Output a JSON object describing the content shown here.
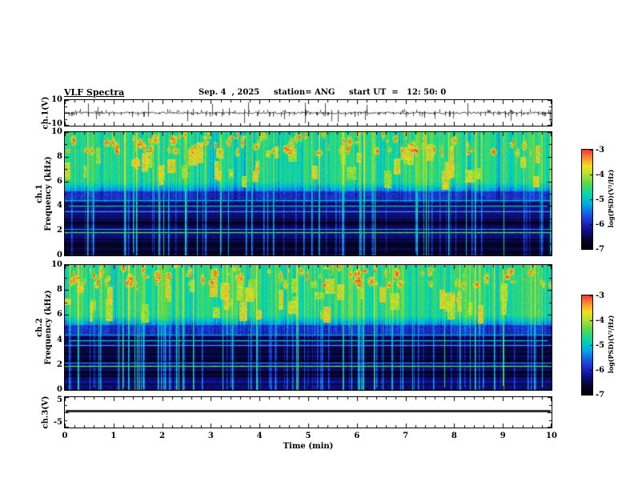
{
  "header": {
    "title": "VLF Spectra",
    "date": "Sep. 4  , 2025",
    "station": "station= ANG",
    "start_ut": "start UT  =   12: 50: 0"
  },
  "panels": {
    "ch1_wave": {
      "ylabel": "ch.1(V)",
      "ytop": "10",
      "ybottom": "-10"
    },
    "ch1_spec": {
      "ylabel_ch": "ch.1",
      "ylabel_freq": "Frequency (kHz)",
      "yticks": [
        "10",
        "8",
        "6",
        "4",
        "2",
        "0"
      ]
    },
    "ch2_spec": {
      "ylabel_ch": "ch.2",
      "ylabel_freq": "Frequency (kHz)",
      "yticks": [
        "10",
        "8",
        "6",
        "4",
        "2",
        "0"
      ]
    },
    "ch3_wave": {
      "ylabel": "ch.3(V)",
      "ytop": "5",
      "ybottom": "-5"
    }
  },
  "xaxis": {
    "label": "Time (min)",
    "ticks": [
      "0",
      "1",
      "2",
      "3",
      "4",
      "5",
      "6",
      "7",
      "8",
      "9",
      "10"
    ]
  },
  "colorbars": [
    {
      "label": "log(PSD)(V²/Hz)",
      "ticks": [
        "-3",
        "-4",
        "-5",
        "-6",
        "-7"
      ]
    },
    {
      "label": "log(PSD)(V²/Hz)",
      "ticks": [
        "-3",
        "-4",
        "-5",
        "-6",
        "-7"
      ]
    }
  ],
  "colormap": {
    "stops": [
      [
        0.0,
        "#000000"
      ],
      [
        0.1,
        "#050530"
      ],
      [
        0.2,
        "#101090"
      ],
      [
        0.32,
        "#2040e0"
      ],
      [
        0.45,
        "#00a8e8"
      ],
      [
        0.55,
        "#00d8b0"
      ],
      [
        0.66,
        "#58d848"
      ],
      [
        0.76,
        "#b8e030"
      ],
      [
        0.84,
        "#f0e020"
      ],
      [
        0.91,
        "#ff9830"
      ],
      [
        1.0,
        "#ff3838"
      ]
    ]
  },
  "chart_data": [
    {
      "type": "line",
      "name": "ch1_waveform",
      "title": "ch.1(V)",
      "x_range_minutes": [
        0,
        10
      ],
      "ylim_volts": [
        -10,
        10
      ],
      "summary": "Low-amplitude noise near 0 V with dense small impulses and ~25 large sferic spikes up to about ±9 V"
    },
    {
      "type": "heatmap",
      "name": "ch1_spectrogram",
      "title": "ch.1 Frequency (kHz)",
      "x_range_minutes": [
        0,
        10
      ],
      "ylim_khz": [
        0,
        10
      ],
      "color_range_log_psd": [
        -7,
        -3
      ],
      "features": {
        "quiet_band_khz": [
          0,
          4.8
        ],
        "emission_band_khz": [
          5,
          10
        ],
        "burst_band_khz": [
          8.3,
          10
        ],
        "narrowband_lines_khz": [
          1.9,
          2.15,
          3.6,
          4.0,
          4.45,
          5.7
        ],
        "narrowband_line_strengths": [
          0.72,
          0.5,
          0.55,
          0.6,
          0.55,
          0.45
        ],
        "vertical_sferics": "dense broadband vertical striations across all frequencies"
      }
    },
    {
      "type": "heatmap",
      "name": "ch2_spectrogram",
      "title": "ch.2 Frequency (kHz)",
      "x_range_minutes": [
        0,
        10
      ],
      "ylim_khz": [
        0,
        10
      ],
      "color_range_log_psd": [
        -7,
        -3
      ],
      "features": {
        "quiet_band_khz": [
          0,
          4.8
        ],
        "emission_band_khz": [
          5,
          10
        ],
        "burst_band_khz": [
          8.3,
          10
        ],
        "narrowband_lines_khz": [
          1.9,
          2.15,
          3.6,
          4.0,
          4.45,
          5.7
        ],
        "narrowband_line_strengths": [
          0.72,
          0.5,
          0.55,
          0.6,
          0.55,
          0.45
        ],
        "vertical_sferics": "dense broadband vertical striations across all frequencies"
      }
    },
    {
      "type": "line",
      "name": "ch3_waveform",
      "title": "ch.3(V)",
      "x_range_minutes": [
        0,
        10
      ],
      "ylim_volts": [
        -5,
        5
      ],
      "values_volts": 0,
      "summary": "Flat thick line at constant 0 V across the whole record"
    }
  ]
}
